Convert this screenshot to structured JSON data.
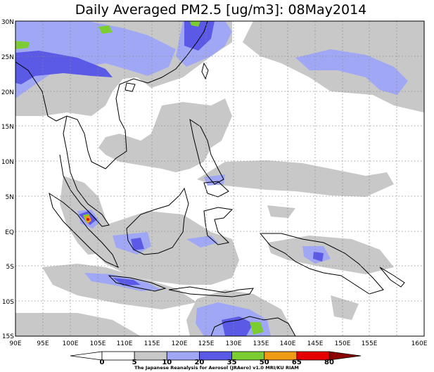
{
  "title": "Daily Averaged PM2.5 [ug/m3]: 08May2014",
  "credit": "The Japanese Reanalysis for Aerosol (JRAero) v1.0 MRI/KU RIAM",
  "lat_labels": [
    "30N",
    "25N",
    "20N",
    "15N",
    "10N",
    "5N",
    "EQ",
    "5S",
    "10S",
    "15S"
  ],
  "lon_labels": [
    "90E",
    "95E",
    "100E",
    "105E",
    "110E",
    "115E",
    "120E",
    "125E",
    "130E",
    "135E",
    "140E",
    "145E",
    "150E",
    "155E",
    "160E"
  ],
  "colorbar": {
    "labels": [
      "0",
      "5",
      "10",
      "20",
      "35",
      "50",
      "65",
      "80"
    ],
    "colors": [
      "#ffffff",
      "#ffffff",
      "#c8c8c8",
      "#a0a8f5",
      "#5a5ae6",
      "#7ccd32",
      "#f09b14",
      "#e60000",
      "#8b0000"
    ]
  },
  "colors": {
    "grey": "#c8c8c8",
    "light_blue": "#a0a8f5",
    "blue": "#5a5ae6",
    "green": "#7ccd32",
    "orange": "#f09b14",
    "red": "#e60000",
    "coast": "#000000"
  }
}
